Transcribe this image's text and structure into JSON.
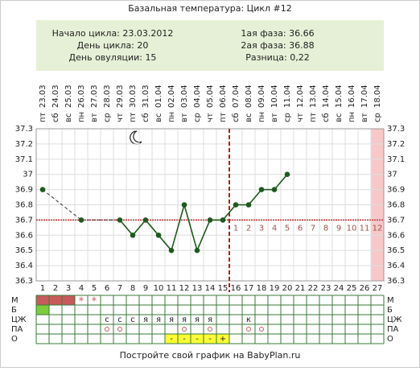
{
  "chart_data": {
    "type": "line",
    "title": "Базальная температура: Цикл #12",
    "info_left": [
      "Начало цикла: 23.03.2012",
      "День цикла: 20",
      "День овуляции: 15"
    ],
    "info_right": [
      "1ая фаза: 36.66",
      "2ая фаза: 36.88",
      "Разница: 0,22"
    ],
    "x": [
      1,
      2,
      3,
      4,
      5,
      6,
      7,
      8,
      9,
      10,
      11,
      12,
      13,
      14,
      15,
      16,
      17,
      18,
      19,
      20,
      21,
      22,
      23,
      24,
      25,
      26,
      27
    ],
    "xlim": [
      0.5,
      27.5
    ],
    "dates": [
      "23.03",
      "24.03",
      "25.03",
      "26.03",
      "27.03",
      "28.03",
      "29.03",
      "30.03",
      "31.03",
      "01.04",
      "02.04",
      "03.04",
      "04.04",
      "05.04",
      "06.04",
      "07.04",
      "08.04",
      "09.04",
      "10.04",
      "11.04",
      "12.04",
      "13.04",
      "14.04",
      "15.04",
      "16.04",
      "17.04",
      "18.04"
    ],
    "weekdays": [
      "пт",
      "сб",
      "вс",
      "пн",
      "вт",
      "ср",
      "чт",
      "пт",
      "сб",
      "вс",
      "пн",
      "вт",
      "ср",
      "чт",
      "пт",
      "сб",
      "вс",
      "пн",
      "вт",
      "ср",
      "чт",
      "пт",
      "сб",
      "вс",
      "пн",
      "вт",
      "ср"
    ],
    "series": [
      {
        "name": "Температура",
        "color": "#1e5a1e",
        "values": [
          36.9,
          null,
          null,
          36.7,
          null,
          null,
          36.7,
          36.6,
          36.7,
          36.6,
          36.5,
          36.8,
          36.5,
          36.7,
          36.7,
          36.8,
          36.8,
          36.9,
          36.9,
          37.0,
          null,
          null,
          null,
          null,
          null,
          null,
          null
        ]
      }
    ],
    "ylim": [
      36.3,
      37.3
    ],
    "yticks": [
      36.3,
      36.4,
      36.5,
      36.6,
      36.7,
      36.8,
      36.9,
      37.0,
      37.1,
      37.2,
      37.3
    ],
    "grid": true,
    "coverline": 36.7,
    "ovulation_day": 15,
    "phase_days": [
      1,
      2,
      3,
      4,
      5,
      6,
      7,
      8,
      9,
      10,
      11,
      12
    ],
    "highlight_day": 27,
    "row_labels": [
      "М",
      "Б",
      "ЦЖ",
      "ПА",
      "О"
    ],
    "menses_days": [
      1,
      2,
      3
    ],
    "spotting_days": [
      4,
      5
    ],
    "spotting_label": "*",
    "b_days": [
      1
    ],
    "cervical": [
      null,
      null,
      null,
      null,
      null,
      "с",
      "с",
      "с",
      "я",
      "я",
      "я",
      "я",
      "я",
      "я",
      null,
      null,
      "к",
      null,
      null,
      null,
      null,
      null,
      null,
      null,
      null,
      null,
      null
    ],
    "intercourse_days": [
      6,
      7,
      12,
      14,
      17,
      18
    ],
    "ovulation_tests": [
      null,
      null,
      null,
      null,
      null,
      null,
      null,
      null,
      null,
      null,
      "-",
      "-",
      "-",
      "-",
      "+",
      null,
      null,
      null,
      null,
      null,
      null,
      null,
      null,
      null,
      null,
      null,
      null
    ],
    "footer": "Постройте свой график на BabyPlan.ru"
  }
}
